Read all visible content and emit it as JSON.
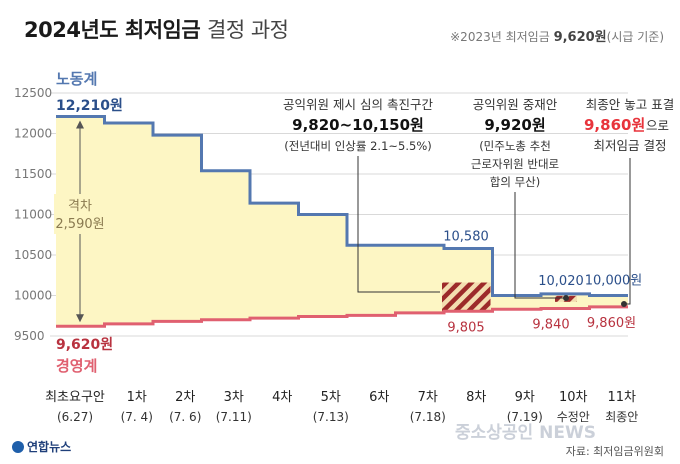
{
  "header": {
    "title_main": "2024년도 최저임금",
    "title_sub": "결정 과정",
    "note_prefix": "※2023년 최저임금",
    "note_value": "9,620원",
    "note_suffix": "(시급 기준)"
  },
  "chart_data": {
    "type": "line",
    "ylim": [
      9500,
      12500
    ],
    "yticks": [
      9500,
      10000,
      10500,
      11000,
      11500,
      12000,
      12500
    ],
    "categories": [
      {
        "label": "최초요구안",
        "sub": "(6.27)"
      },
      {
        "label": "1차",
        "sub": "(7. 4)"
      },
      {
        "label": "2차",
        "sub": "(7. 6)"
      },
      {
        "label": "3차",
        "sub": "(7.11)"
      },
      {
        "label": "4차",
        "sub": ""
      },
      {
        "label": "5차",
        "sub": "(7.13)"
      },
      {
        "label": "6차",
        "sub": ""
      },
      {
        "label": "7차",
        "sub": "(7.18)"
      },
      {
        "label": "8차",
        "sub": ""
      },
      {
        "label": "9차",
        "sub": "(7.19)"
      },
      {
        "label": "10차",
        "sub": "수정안"
      },
      {
        "label": "11차",
        "sub": "최종안"
      }
    ],
    "series": [
      {
        "name": "노동계",
        "color": "#5478b0",
        "values": [
          12210,
          12130,
          11980,
          11540,
          11140,
          11000,
          10620,
          10620,
          10580,
          10000,
          10020,
          10000
        ]
      },
      {
        "name": "경영계",
        "color": "#e06070",
        "values": [
          9620,
          9650,
          9680,
          9700,
          9720,
          9740,
          9755,
          9785,
          9805,
          9830,
          9840,
          9860
        ]
      }
    ],
    "gap": {
      "label": "격차",
      "value": "2,590원"
    },
    "value_labels": {
      "labor_first": "12,210원",
      "business_first": "9,620원",
      "labor_8": "10,580",
      "labor_10": "10,020",
      "labor_11": "10,000원",
      "business_8": "9,805",
      "business_10": "9,840",
      "business_11": "9,860원"
    },
    "annotations": {
      "a1_line1": "공익위원 제시 심의 촉진구간",
      "a1_line2": "9,820~10,150원",
      "a1_line3": "(전년대비 인상률 2.1~5.5%)",
      "a2_line1": "공익위원 중재안",
      "a2_line2": "9,920원",
      "a2_line3": "(민주노총 추천",
      "a2_line4": "근로자위원 반대로",
      "a2_line5": "합의 무산)",
      "a3_line1": "최종안 놓고 표결",
      "a3_value": "9,860원",
      "a3_suffix": "으로",
      "a3_line3": "최저임금 결정"
    },
    "colors": {
      "labor": "#5478b0",
      "business": "#e06070",
      "fill": "#fdf6c4",
      "highlight": "#e8343c"
    }
  },
  "footer": {
    "logo": "연합뉴스",
    "source": "자료: 최저임금위원회",
    "watermark": "중소상공인 NEWS"
  }
}
